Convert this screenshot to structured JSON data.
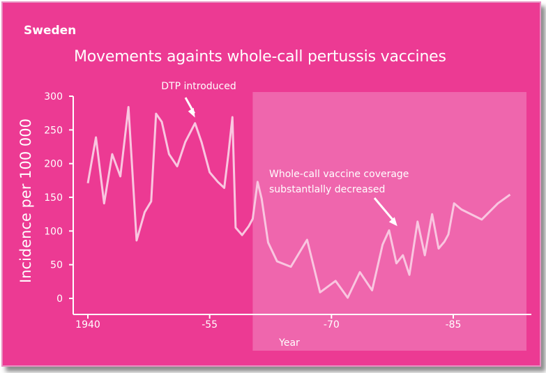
{
  "header": {
    "country": "Sweden",
    "title": "Movements againts whole-call pertussis vaccines"
  },
  "colors": {
    "background": "#ec3a93",
    "highlight_region": "#f06fb1",
    "line": "#f9c6e0",
    "text": "#ffffff"
  },
  "chart_data": {
    "type": "line",
    "title": "Movements againts whole-call pertussis vaccines",
    "xlabel": "Year",
    "ylabel": "Incidence per 100 000",
    "xlim": [
      1940,
      1986
    ],
    "ylim": [
      0,
      300
    ],
    "xticks": [
      1940,
      1955,
      1970,
      1985
    ],
    "xtick_labels": [
      "1940",
      "-55",
      "-70",
      "-85"
    ],
    "yticks": [
      0,
      50,
      100,
      150,
      200,
      250,
      300
    ],
    "grid": false,
    "highlight_region": {
      "x_start": 1960.3,
      "x_end": 1986
    },
    "series": [
      {
        "x": [
          1940,
          1941,
          1942,
          1943,
          1944,
          1945,
          1946,
          1947,
          1947.8,
          1948.4,
          1949.1,
          1950,
          1951,
          1952,
          1953.2,
          1954,
          1955,
          1956,
          1956.8,
          1957.3,
          1957.8,
          1958.2,
          1959,
          1959.8,
          1960.3,
          1960.9,
          1961.4,
          1962.2,
          1963.3,
          1965,
          1967,
          1968.6,
          1970.5,
          1972,
          1973.5,
          1975,
          1976.3,
          1977.1,
          1978,
          1978.8,
          1979.6,
          1980.6,
          1981.5,
          1982.4,
          1983.2,
          1983.9,
          1984.4,
          1985.1,
          1986,
          1988.5,
          1990.5,
          1992
        ],
        "values": [
          171,
          239,
          141,
          214,
          181,
          284,
          86,
          128,
          144,
          274,
          262,
          214,
          196,
          232,
          260,
          232,
          187,
          173,
          164,
          213,
          269,
          105,
          94,
          107,
          118,
          173,
          148,
          83,
          55,
          47,
          87,
          9,
          26,
          1,
          39,
          12,
          80,
          101,
          52,
          64,
          35,
          114,
          64,
          125,
          74,
          84,
          95,
          141,
          132,
          117,
          141,
          154
        ]
      }
    ],
    "annotations": [
      {
        "text": "DTP introduced",
        "x": 1953.2,
        "y": 260
      },
      {
        "text": "Whole-call vaccine coverage substantlally decreased",
        "lines": [
          "Whole-call vaccine coverage",
          "substantlally decreased"
        ],
        "x": 1978.8,
        "y": 101
      }
    ]
  }
}
